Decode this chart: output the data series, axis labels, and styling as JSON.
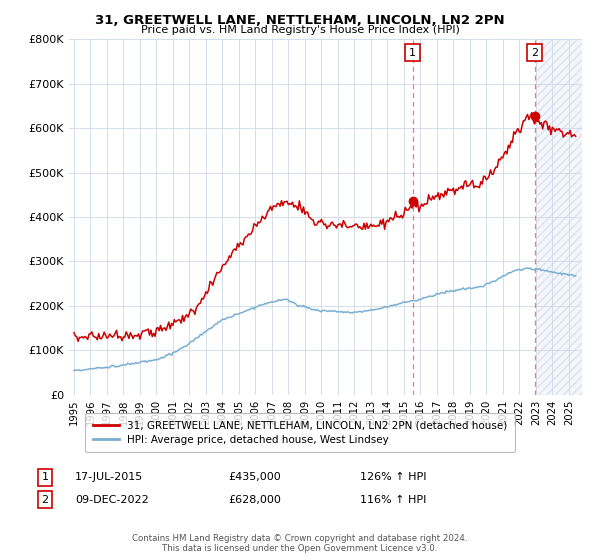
{
  "title": "31, GREETWELL LANE, NETTLEHAM, LINCOLN, LN2 2PN",
  "subtitle": "Price paid vs. HM Land Registry's House Price Index (HPI)",
  "ylim": [
    0,
    800000
  ],
  "yticks": [
    0,
    100000,
    200000,
    300000,
    400000,
    500000,
    600000,
    700000,
    800000
  ],
  "ytick_labels": [
    "£0",
    "£100K",
    "£200K",
    "£300K",
    "£400K",
    "£500K",
    "£600K",
    "£700K",
    "£800K"
  ],
  "sale1_price": 435000,
  "sale2_price": 628000,
  "legend_line1": "31, GREETWELL LANE, NETTLEHAM, LINCOLN, LN2 2PN (detached house)",
  "legend_line2": "HPI: Average price, detached house, West Lindsey",
  "annotation1": [
    "1",
    "17-JUL-2015",
    "£435,000",
    "126% ↑ HPI"
  ],
  "annotation2": [
    "2",
    "09-DEC-2022",
    "£628,000",
    "116% ↑ HPI"
  ],
  "footer": "Contains HM Land Registry data © Crown copyright and database right 2024.\nThis data is licensed under the Open Government Licence v3.0.",
  "line_color_red": "#cc0000",
  "line_color_blue": "#7aafd4",
  "sale_color": "#cc0000",
  "vline_color": "#e08080",
  "background_color": "#ffffff",
  "grid_color": "#d0d8e8",
  "hatch_color": "#d0d8e8",
  "xlim_left": 1994.7,
  "xlim_right": 2025.8,
  "hatch_start": 2023.0
}
